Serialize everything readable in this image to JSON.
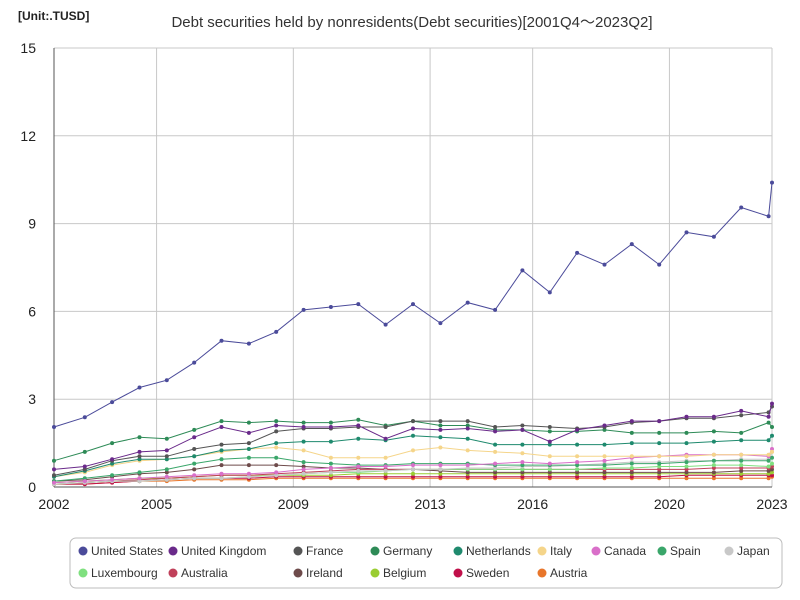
{
  "chart_data": {
    "type": "line",
    "title": "Debt securities held by nonresidents(Debt securities)[2001Q4～2023Q2]",
    "unit": "[Unit:.TUSD]",
    "x_tick_labels": [
      "2002",
      "2005",
      "2009",
      "2013",
      "2016",
      "2020",
      "2023"
    ],
    "x_ticks": [
      2002,
      2005,
      2009,
      2013,
      2016,
      2020,
      2023
    ],
    "xlim": [
      2002,
      2023
    ],
    "y_ticks": [
      0,
      3,
      6,
      9,
      12,
      15
    ],
    "y_tick_labels": [
      "0",
      "3",
      "6",
      "9",
      "12",
      "15"
    ],
    "ylim": [
      0,
      15
    ],
    "grid": true,
    "legend_position": "bottom",
    "x": [
      2002.0,
      2002.9,
      2003.7,
      2004.5,
      2005.3,
      2006.1,
      2006.9,
      2007.7,
      2008.5,
      2009.3,
      2010.1,
      2010.9,
      2011.7,
      2012.5,
      2013.3,
      2014.1,
      2014.9,
      2015.7,
      2016.5,
      2017.3,
      2018.1,
      2018.9,
      2019.7,
      2020.5,
      2021.3,
      2022.1,
      2022.9,
      2023.0
    ],
    "series": [
      {
        "name": "United States",
        "color": "#4b4b9a",
        "values": [
          2.05,
          2.38,
          2.9,
          3.4,
          3.65,
          4.25,
          5.0,
          4.9,
          5.3,
          6.05,
          6.15,
          6.25,
          5.55,
          6.25,
          5.6,
          6.3,
          6.05,
          7.4,
          6.65,
          8.0,
          7.6,
          8.3,
          7.6,
          8.7,
          8.55,
          9.55,
          9.25,
          10.4
        ]
      },
      {
        "name": "United Kingdom",
        "color": "#6a2a8a",
        "values": [
          0.6,
          0.7,
          0.95,
          1.2,
          1.25,
          1.7,
          2.05,
          1.85,
          2.1,
          2.05,
          2.05,
          2.1,
          1.65,
          2.0,
          1.95,
          2.0,
          1.9,
          1.95,
          1.55,
          1.95,
          2.1,
          2.25,
          2.25,
          2.4,
          2.4,
          2.6,
          2.4,
          2.85
        ]
      },
      {
        "name": "France",
        "color": "#555555",
        "values": [
          0.4,
          0.6,
          0.9,
          1.05,
          1.05,
          1.3,
          1.45,
          1.5,
          1.9,
          2.0,
          2.0,
          2.05,
          2.05,
          2.25,
          2.25,
          2.25,
          2.05,
          2.1,
          2.05,
          2.0,
          2.05,
          2.2,
          2.25,
          2.35,
          2.35,
          2.45,
          2.55,
          2.75
        ]
      },
      {
        "name": "Germany",
        "color": "#2e8b57",
        "values": [
          0.9,
          1.2,
          1.5,
          1.7,
          1.65,
          1.95,
          2.25,
          2.2,
          2.25,
          2.2,
          2.2,
          2.3,
          2.1,
          2.25,
          2.1,
          2.1,
          1.95,
          1.95,
          1.9,
          1.9,
          1.95,
          1.85,
          1.85,
          1.85,
          1.9,
          1.85,
          2.2,
          2.05
        ]
      },
      {
        "name": "Netherlands",
        "color": "#1f8a6e",
        "values": [
          0.35,
          0.55,
          0.8,
          0.95,
          0.95,
          1.05,
          1.25,
          1.3,
          1.5,
          1.55,
          1.55,
          1.65,
          1.6,
          1.75,
          1.7,
          1.65,
          1.45,
          1.45,
          1.45,
          1.45,
          1.45,
          1.5,
          1.5,
          1.5,
          1.55,
          1.6,
          1.6,
          1.75
        ]
      },
      {
        "name": "Italy",
        "color": "#f5d58a",
        "values": [
          0.35,
          0.5,
          0.75,
          0.9,
          0.95,
          1.05,
          1.2,
          1.3,
          1.35,
          1.25,
          1.0,
          1.0,
          1.0,
          1.25,
          1.35,
          1.25,
          1.2,
          1.15,
          1.05,
          1.05,
          1.05,
          1.05,
          1.05,
          1.05,
          1.1,
          1.1,
          1.1,
          1.2
        ]
      },
      {
        "name": "Canada",
        "color": "#d96fc9",
        "values": [
          0.15,
          0.2,
          0.25,
          0.3,
          0.35,
          0.4,
          0.45,
          0.45,
          0.5,
          0.6,
          0.65,
          0.7,
          0.7,
          0.75,
          0.75,
          0.75,
          0.8,
          0.85,
          0.8,
          0.85,
          0.9,
          1.0,
          1.05,
          1.1,
          1.1,
          1.1,
          1.05,
          1.3
        ]
      },
      {
        "name": "Spain",
        "color": "#3aa66a",
        "values": [
          0.2,
          0.3,
          0.4,
          0.5,
          0.6,
          0.8,
          0.95,
          1.0,
          1.0,
          0.85,
          0.8,
          0.75,
          0.75,
          0.8,
          0.8,
          0.8,
          0.75,
          0.75,
          0.75,
          0.75,
          0.75,
          0.8,
          0.8,
          0.85,
          0.9,
          0.9,
          0.9,
          1.0
        ]
      },
      {
        "name": "Japan",
        "color": "#c8c8c8",
        "values": [
          0.1,
          0.15,
          0.2,
          0.2,
          0.25,
          0.3,
          0.3,
          0.35,
          0.4,
          0.45,
          0.5,
          0.55,
          0.55,
          0.6,
          0.6,
          0.65,
          0.65,
          0.7,
          0.7,
          0.75,
          0.8,
          0.85,
          0.85,
          0.9,
          0.9,
          0.95,
          0.95,
          1.2
        ]
      },
      {
        "name": "Luxembourg",
        "color": "#7fe07f",
        "values": [
          0.1,
          0.15,
          0.2,
          0.2,
          0.25,
          0.3,
          0.3,
          0.35,
          0.4,
          0.45,
          0.5,
          0.5,
          0.55,
          0.6,
          0.6,
          0.6,
          0.6,
          0.6,
          0.6,
          0.6,
          0.65,
          0.65,
          0.7,
          0.7,
          0.75,
          0.75,
          0.7,
          0.8
        ]
      },
      {
        "name": "Australia",
        "color": "#c0405a",
        "values": [
          0.1,
          0.15,
          0.2,
          0.25,
          0.3,
          0.35,
          0.4,
          0.4,
          0.45,
          0.5,
          0.55,
          0.6,
          0.6,
          0.6,
          0.6,
          0.6,
          0.6,
          0.6,
          0.6,
          0.6,
          0.6,
          0.6,
          0.6,
          0.6,
          0.65,
          0.65,
          0.65,
          0.7
        ]
      },
      {
        "name": "Ireland",
        "color": "#6e4b4b",
        "values": [
          0.2,
          0.25,
          0.35,
          0.45,
          0.5,
          0.6,
          0.75,
          0.75,
          0.75,
          0.7,
          0.65,
          0.65,
          0.6,
          0.6,
          0.55,
          0.5,
          0.5,
          0.5,
          0.5,
          0.5,
          0.5,
          0.5,
          0.5,
          0.5,
          0.5,
          0.55,
          0.55,
          0.6
        ]
      },
      {
        "name": "Belgium",
        "color": "#9acd32",
        "values": [
          0.15,
          0.2,
          0.25,
          0.3,
          0.3,
          0.35,
          0.4,
          0.4,
          0.4,
          0.4,
          0.4,
          0.45,
          0.45,
          0.45,
          0.45,
          0.45,
          0.45,
          0.45,
          0.45,
          0.45,
          0.45,
          0.45,
          0.45,
          0.45,
          0.45,
          0.45,
          0.45,
          0.5
        ]
      },
      {
        "name": "Sweden",
        "color": "#c0104a",
        "values": [
          0.1,
          0.1,
          0.15,
          0.2,
          0.25,
          0.3,
          0.3,
          0.3,
          0.35,
          0.35,
          0.35,
          0.35,
          0.35,
          0.35,
          0.35,
          0.35,
          0.35,
          0.35,
          0.35,
          0.35,
          0.35,
          0.35,
          0.35,
          0.4,
          0.4,
          0.4,
          0.4,
          0.4
        ]
      },
      {
        "name": "Austria",
        "color": "#e8762b",
        "values": [
          0.1,
          0.1,
          0.15,
          0.2,
          0.2,
          0.25,
          0.25,
          0.25,
          0.3,
          0.3,
          0.3,
          0.3,
          0.3,
          0.3,
          0.3,
          0.3,
          0.3,
          0.3,
          0.3,
          0.3,
          0.3,
          0.3,
          0.3,
          0.3,
          0.3,
          0.3,
          0.3,
          0.35
        ]
      }
    ]
  }
}
